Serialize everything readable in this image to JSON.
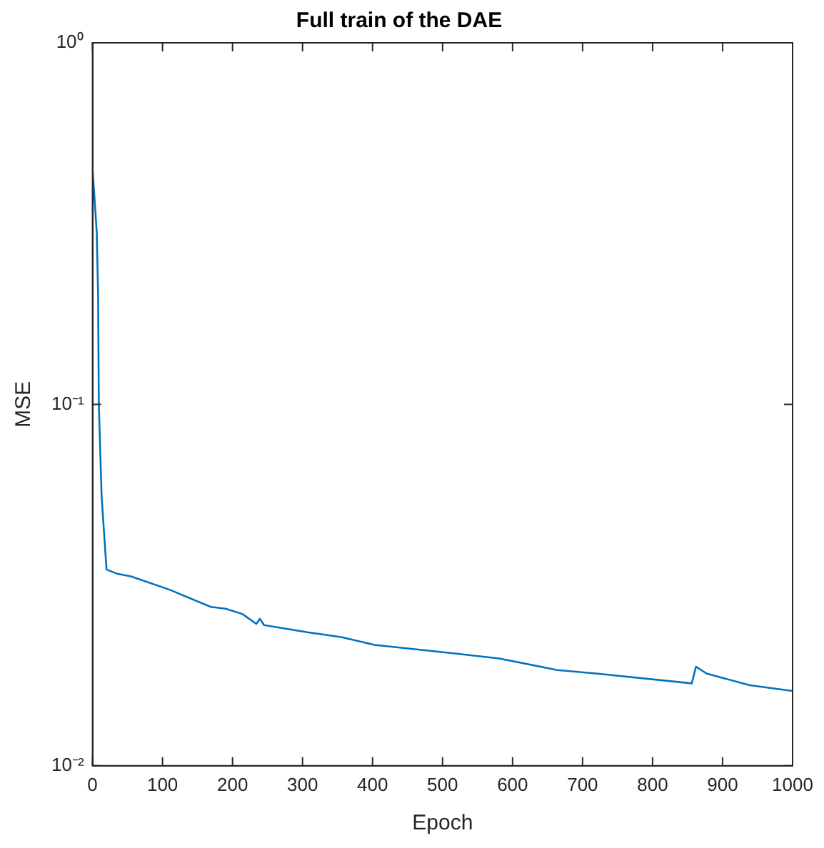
{
  "chart_data": {
    "type": "line",
    "title": "Full train of the DAE",
    "xlabel": "Epoch",
    "ylabel": "MSE",
    "log": "y",
    "grid": false,
    "legend": false,
    "marker": "none",
    "line_style": "solid",
    "xlim": [
      0,
      1000
    ],
    "xticks": [
      0,
      100,
      200,
      300,
      400,
      500,
      600,
      700,
      800,
      900,
      1000
    ],
    "ylim": [
      0.01,
      1
    ],
    "yticks": [
      {
        "value": 0.01,
        "label": "10⁻²"
      },
      {
        "value": 0.1,
        "label": "10⁻¹"
      },
      {
        "value": 1,
        "label": "10⁰"
      }
    ],
    "series": [
      {
        "color": "#0072bd",
        "x": [
          0,
          6,
          8,
          9,
          13,
          20,
          35,
          55,
          110,
          169,
          190,
          214,
          234,
          239,
          245,
          307,
          355,
          403,
          513,
          581,
          664,
          719,
          856,
          862,
          877,
          939,
          1000
        ],
        "values": [
          0.45,
          0.3,
          0.2,
          0.1,
          0.0556,
          0.0349,
          0.034,
          0.0334,
          0.0307,
          0.0275,
          0.0272,
          0.0263,
          0.0247,
          0.0255,
          0.0245,
          0.0234,
          0.0227,
          0.0216,
          0.0205,
          0.0198,
          0.0184,
          0.018,
          0.0169,
          0.0188,
          0.018,
          0.0167,
          0.0161
        ]
      }
    ]
  }
}
